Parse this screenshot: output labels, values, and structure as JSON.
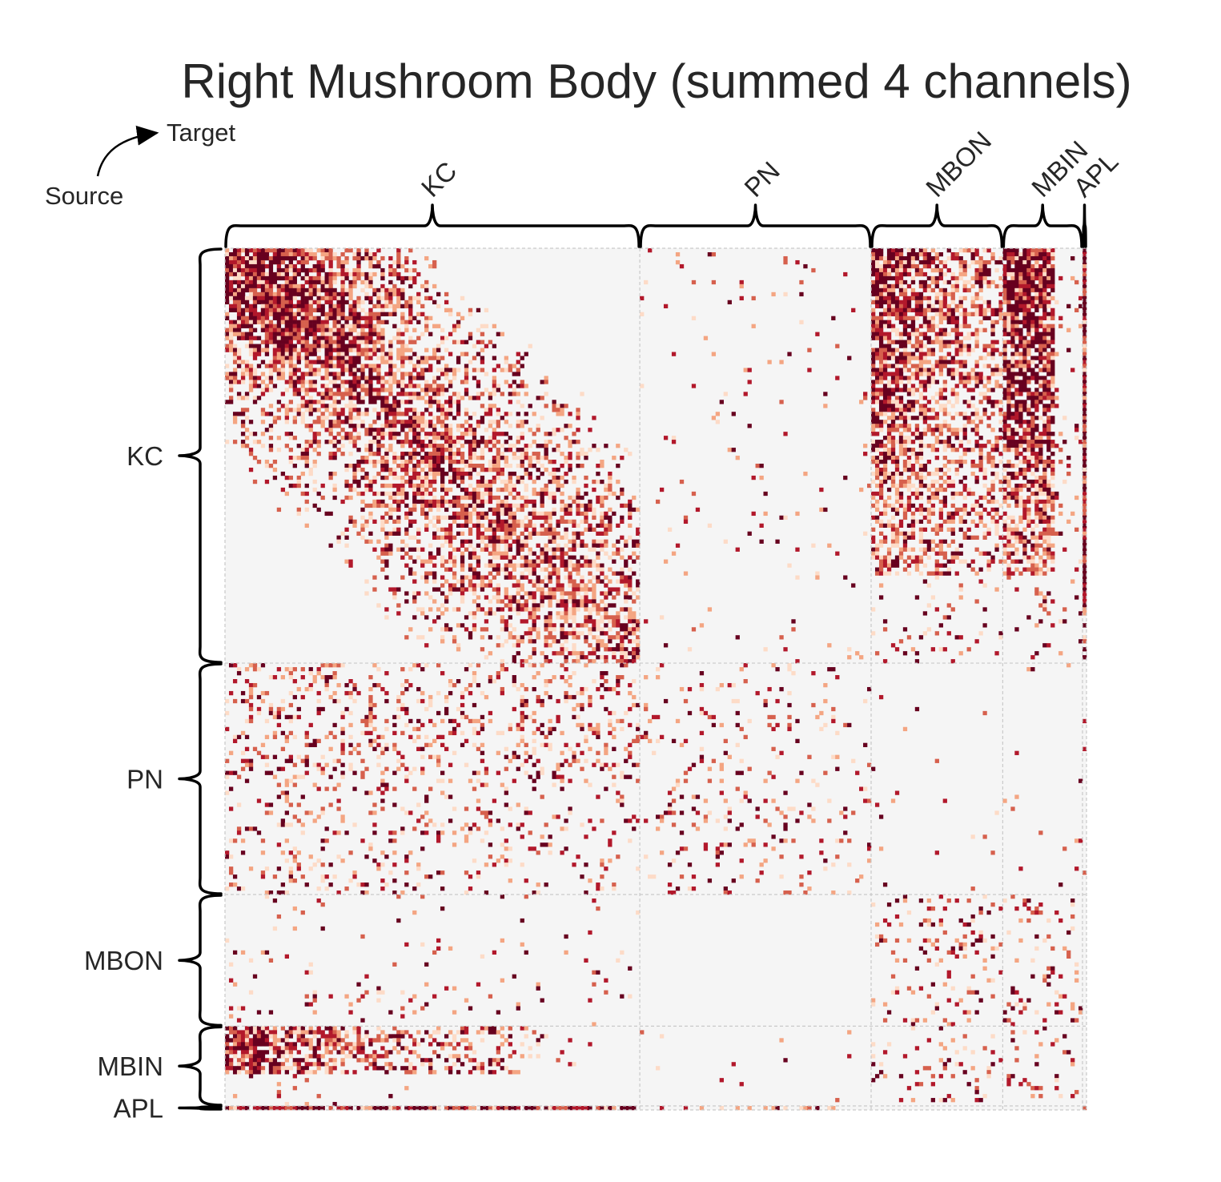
{
  "chart_data": {
    "type": "heatmap",
    "title": "Right Mushroom Body (summed 4 channels)",
    "axis_note": {
      "source_label": "Source",
      "target_label": "Target"
    },
    "groups": [
      {
        "name": "KC",
        "count": 104
      },
      {
        "name": "PN",
        "count": 58
      },
      {
        "name": "MBON",
        "count": 33
      },
      {
        "name": "MBIN",
        "count": 20
      },
      {
        "name": "APL",
        "count": 1
      }
    ],
    "row_group_order": [
      "KC",
      "PN",
      "MBON",
      "MBIN",
      "APL"
    ],
    "column_group_order": [
      "KC",
      "PN",
      "MBON",
      "MBIN",
      "APL"
    ],
    "block_density": [
      [
        0.55,
        0.02,
        0.75,
        0.65,
        0.98
      ],
      [
        0.1,
        0.08,
        0.01,
        0.01,
        0.05
      ],
      [
        0.03,
        0.0,
        0.12,
        0.1,
        0.05
      ],
      [
        0.45,
        0.01,
        0.08,
        0.1,
        0.05
      ],
      [
        0.55,
        0.2,
        0.05,
        0.02,
        0.0
      ]
    ],
    "colormap": [
      "#fddbc7",
      "#f4a582",
      "#d6604d",
      "#b2182b",
      "#67001f"
    ],
    "background_color": "#f5f5f5",
    "grid": true
  }
}
